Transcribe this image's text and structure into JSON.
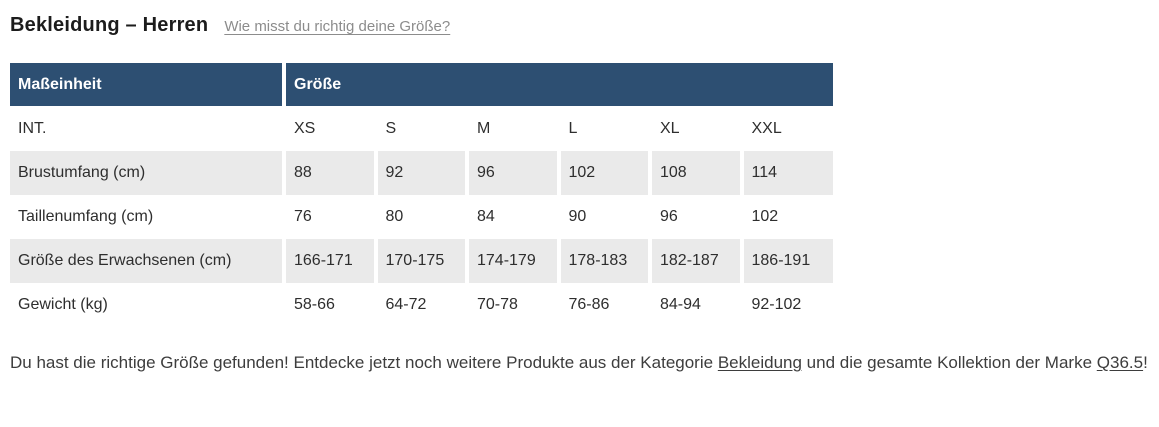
{
  "page": {
    "title": "Bekleidung – Herren",
    "size_guide_link": "Wie misst du richtig deine Größe?"
  },
  "table": {
    "header": {
      "measure_unit": "Maßeinheit",
      "size": "Größe"
    },
    "rows": [
      {
        "label": "INT.",
        "values": [
          "XS",
          "S",
          "M",
          "L",
          "XL",
          "XXL"
        ]
      },
      {
        "label": "Brustumfang (cm)",
        "values": [
          "88",
          "92",
          "96",
          "102",
          "108",
          "114"
        ]
      },
      {
        "label": "Taillenumfang (cm)",
        "values": [
          "76",
          "80",
          "84",
          "90",
          "96",
          "102"
        ]
      },
      {
        "label": "Größe des Erwachsenen (cm)",
        "values": [
          "166-171",
          "170-175",
          "174-179",
          "178-183",
          "182-187",
          "186-191"
        ]
      },
      {
        "label": "Gewicht (kg)",
        "values": [
          "58-66",
          "64-72",
          "70-78",
          "76-86",
          "84-94",
          "92-102"
        ]
      }
    ]
  },
  "footer": {
    "text_before": "Du hast die richtige Größe gefunden! Entdecke jetzt noch weitere Produkte aus der Kategorie ",
    "category_link": "Bekleidung",
    "text_middle": " und die gesamte Kollektion der Marke ",
    "brand_link": "Q36.5",
    "text_after": "!"
  },
  "colors": {
    "header_bg": "#2d4f72",
    "shaded_row_bg": "#eaeaea",
    "muted_link": "#8c8c8c"
  }
}
